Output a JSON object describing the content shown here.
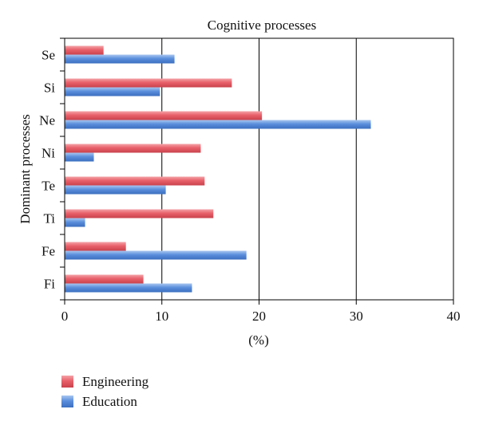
{
  "chart_data": {
    "type": "bar",
    "orientation": "horizontal",
    "title": "Cognitive processes",
    "xlabel": "(%)",
    "ylabel": "Dominant processes",
    "xlim": [
      0,
      40
    ],
    "xticks": [
      0,
      10,
      20,
      30,
      40
    ],
    "grid": "vertical",
    "legend_position": "bottom-left",
    "categories": [
      "Se",
      "Si",
      "Ne",
      "Ni",
      "Te",
      "Ti",
      "Fe",
      "Fi"
    ],
    "series": [
      {
        "name": "Engineering",
        "color": "#e8606a",
        "values": [
          4.0,
          17.2,
          20.3,
          14.0,
          14.4,
          15.3,
          6.3,
          8.1
        ]
      },
      {
        "name": "Education",
        "color": "#5b8fdc",
        "values": [
          11.3,
          9.8,
          31.5,
          3.0,
          10.4,
          2.1,
          18.7,
          13.1
        ]
      }
    ]
  }
}
